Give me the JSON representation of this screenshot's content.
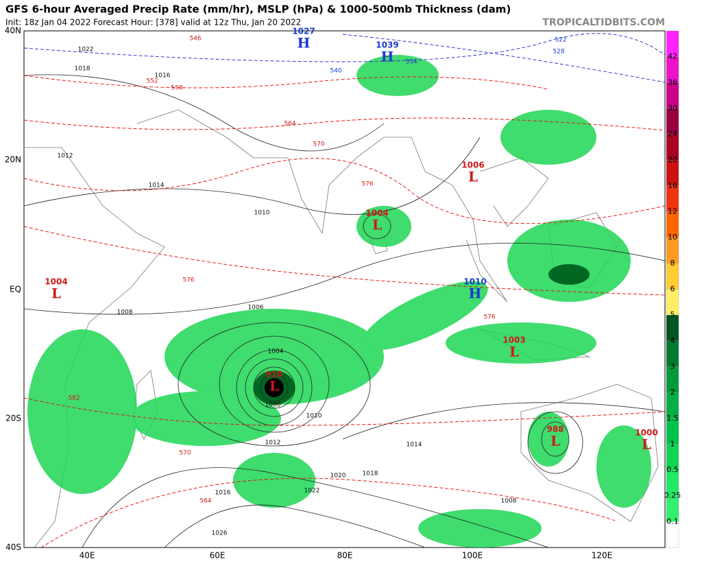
{
  "header": {
    "title": "GFS 6-hour Averaged Precip Rate (mm/hr), MSLP (hPa) & 1000-500mb Thickness (dam)",
    "subtitle": "Init: 18z Jan 04 2022   Forecast Hour: [378]   valid at 12z Thu, Jan 20 2022",
    "site": "TROPICALTIDBITS.COM"
  },
  "axes": {
    "lat_labels": [
      "40N",
      "20N",
      "EQ",
      "20S",
      "40S"
    ],
    "lon_labels": [
      "40E",
      "60E",
      "80E",
      "100E",
      "120E"
    ]
  },
  "colorbar": {
    "labels": [
      "42",
      "36",
      "30",
      "24",
      "20",
      "16",
      "12",
      "10",
      "8",
      "6",
      "5",
      "4",
      "3",
      "2",
      "1.5",
      "1",
      "0.5",
      "0.25",
      "0.1"
    ]
  },
  "centers": [
    {
      "symbol": "H",
      "value": "1027"
    },
    {
      "symbol": "H",
      "value": "1039"
    },
    {
      "symbol": "L",
      "value": "1006"
    },
    {
      "symbol": "L",
      "value": "1004"
    },
    {
      "symbol": "L",
      "value": "1004"
    },
    {
      "symbol": "H",
      "value": "1010"
    },
    {
      "symbol": "L",
      "value": "1003"
    },
    {
      "symbol": "L",
      "value": "910"
    },
    {
      "symbol": "L",
      "value": "988"
    },
    {
      "symbol": "L",
      "value": "1000"
    }
  ],
  "contour_labels": [
    "1022",
    "1018",
    "1016",
    "1014",
    "1012",
    "1010",
    "1008",
    "1006",
    "1004",
    "1000",
    "1010",
    "1012",
    "1014",
    "1018",
    "1020",
    "1022",
    "1026",
    "1008",
    "1016",
    "546",
    "552",
    "558",
    "564",
    "570",
    "576",
    "576",
    "570",
    "564",
    "582",
    "576",
    "540",
    "534",
    "528",
    "522"
  ]
}
